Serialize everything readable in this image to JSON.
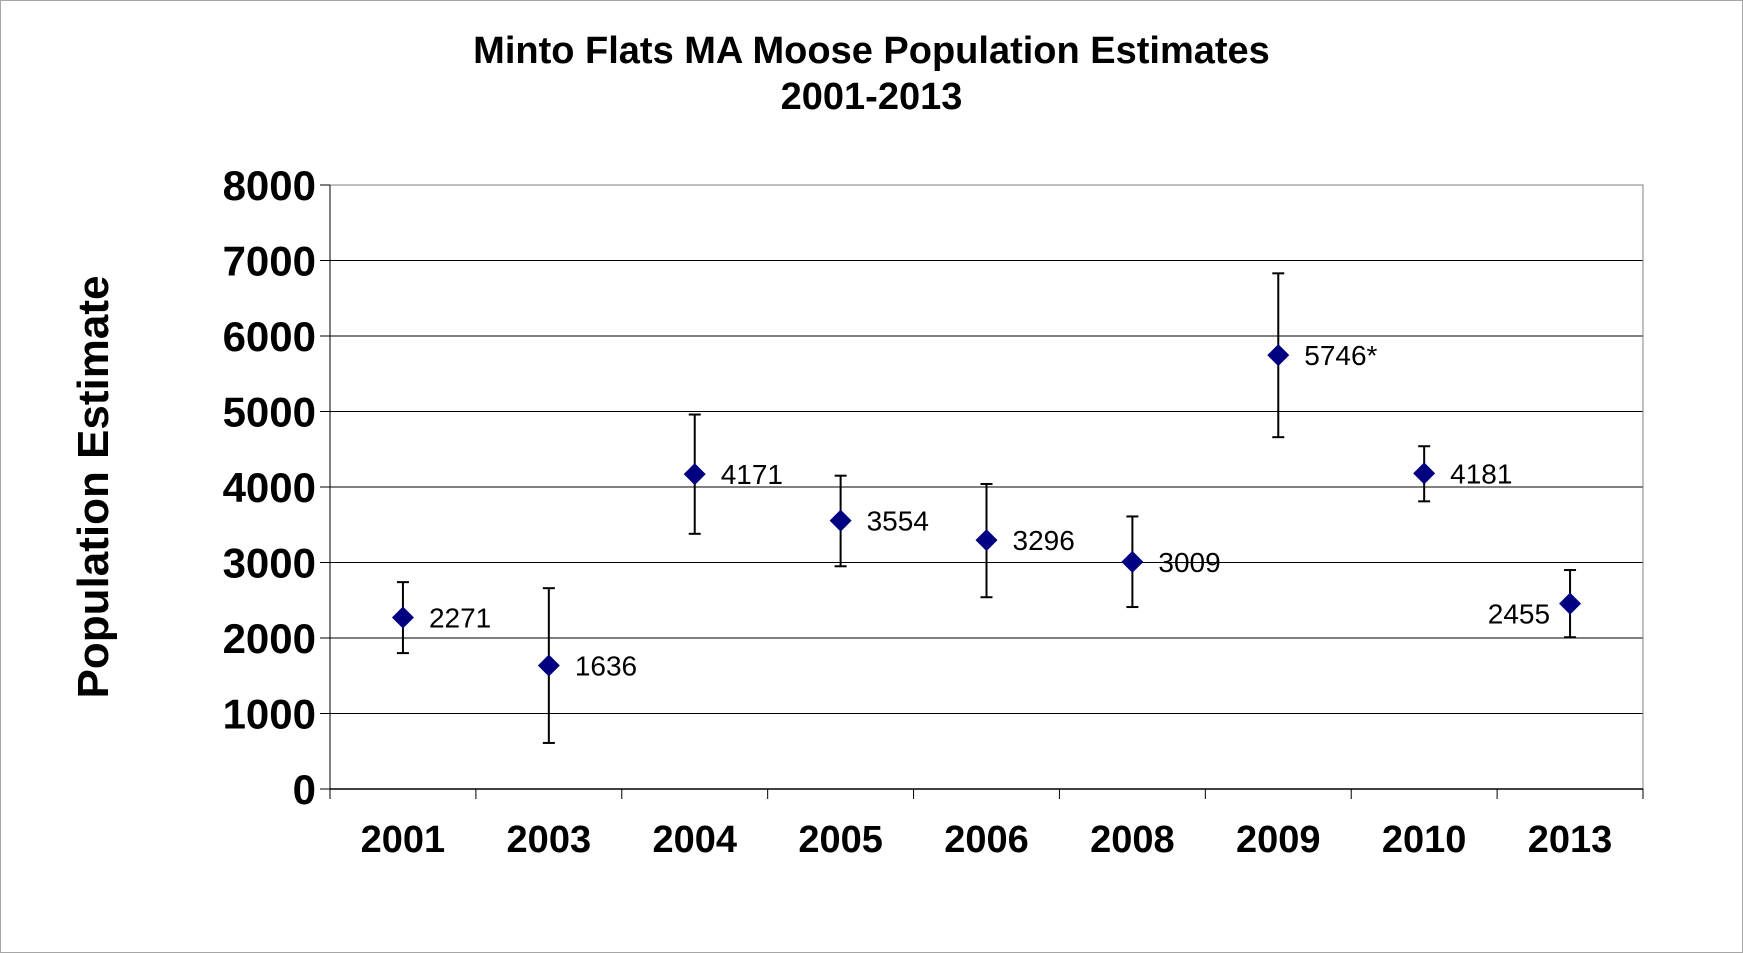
{
  "chart_data": {
    "type": "scatter",
    "title": "Minto Flats MA Moose Population Estimates",
    "subtitle": "2001-2013",
    "xlabel": "",
    "ylabel": "Population Estimate",
    "categories": [
      "2001",
      "2003",
      "2004",
      "2005",
      "2006",
      "2008",
      "2009",
      "2010",
      "2013"
    ],
    "series": [
      {
        "values": [
          2271,
          1636,
          4171,
          3554,
          3296,
          3009,
          5746,
          4181,
          2455
        ],
        "labels": [
          "2271",
          "1636",
          "4171",
          "3554",
          "3296",
          "3009",
          "5746*",
          "4181",
          "2455"
        ],
        "error_low": [
          1800,
          610,
          3380,
          2950,
          2540,
          2410,
          4660,
          3810,
          2010
        ],
        "error_high": [
          2740,
          2660,
          4960,
          4150,
          4040,
          3610,
          6830,
          4540,
          2900
        ]
      }
    ],
    "yticks": [
      "0",
      "1000",
      "2000",
      "3000",
      "4000",
      "5000",
      "6000",
      "7000",
      "8000"
    ],
    "ylim": [
      0,
      8000
    ],
    "grid": true,
    "legend": "none",
    "colors": {
      "marker": "#000080",
      "grid": "#000000",
      "error_bar": "#000000"
    }
  }
}
